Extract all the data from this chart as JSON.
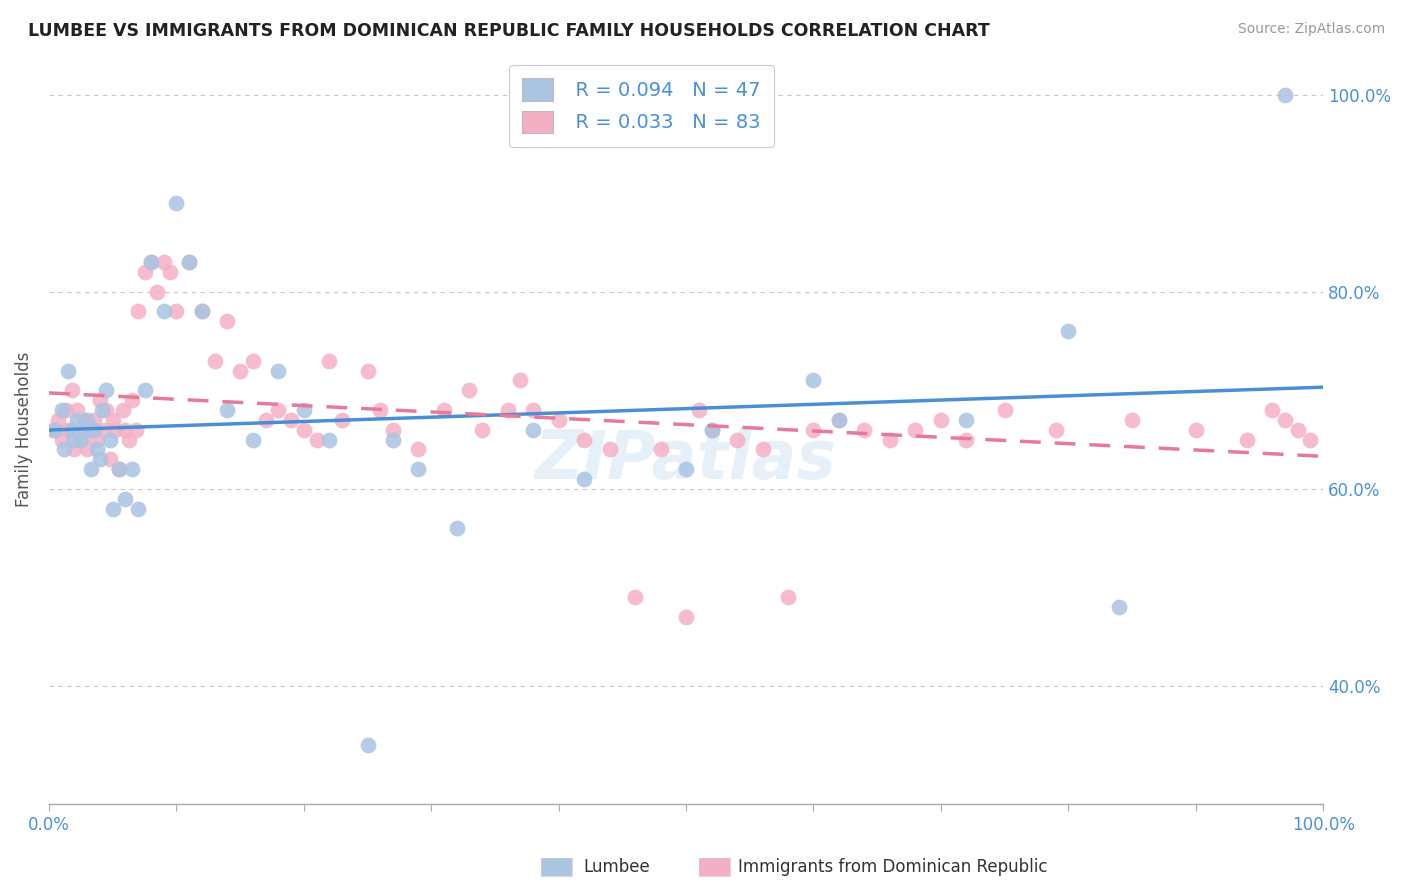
{
  "title": "LUMBEE VS IMMIGRANTS FROM DOMINICAN REPUBLIC FAMILY HOUSEHOLDS CORRELATION CHART",
  "source": "Source: ZipAtlas.com",
  "ylabel": "Family Households",
  "xlim": [
    0.0,
    1.0
  ],
  "ylim": [
    0.28,
    1.04
  ],
  "grid_color": "#c8c8c8",
  "background_color": "#ffffff",
  "lumbee_color": "#aac4e2",
  "dr_color": "#f5afc5",
  "lumbee_line_color": "#4a8fd4",
  "dr_line_color": "#e8799a",
  "legend_R_lumbee": "R = 0.094",
  "legend_N_lumbee": "N = 47",
  "legend_R_dr": "R = 0.033",
  "legend_N_dr": "N = 83",
  "legend_label_lumbee": "Lumbee",
  "legend_label_dr": "Immigrants from Dominican Republic",
  "watermark": "ZIPatlas",
  "lumbee_x": [
    0.005,
    0.01,
    0.012,
    0.015,
    0.018,
    0.02,
    0.022,
    0.025,
    0.028,
    0.03,
    0.033,
    0.035,
    0.038,
    0.04,
    0.042,
    0.045,
    0.048,
    0.05,
    0.055,
    0.06,
    0.065,
    0.07,
    0.075,
    0.08,
    0.09,
    0.1,
    0.11,
    0.12,
    0.14,
    0.16,
    0.18,
    0.2,
    0.22,
    0.25,
    0.27,
    0.29,
    0.32,
    0.38,
    0.42,
    0.5,
    0.52,
    0.6,
    0.62,
    0.72,
    0.8,
    0.84,
    0.97
  ],
  "lumbee_y": [
    0.66,
    0.68,
    0.64,
    0.72,
    0.66,
    0.65,
    0.67,
    0.65,
    0.66,
    0.67,
    0.62,
    0.66,
    0.64,
    0.63,
    0.68,
    0.7,
    0.65,
    0.58,
    0.62,
    0.59,
    0.62,
    0.58,
    0.7,
    0.83,
    0.78,
    0.89,
    0.83,
    0.78,
    0.68,
    0.65,
    0.72,
    0.68,
    0.65,
    0.34,
    0.65,
    0.62,
    0.56,
    0.66,
    0.61,
    0.62,
    0.66,
    0.71,
    0.67,
    0.67,
    0.76,
    0.48,
    1.0
  ],
  "dr_x": [
    0.003,
    0.007,
    0.01,
    0.013,
    0.015,
    0.018,
    0.02,
    0.022,
    0.025,
    0.028,
    0.03,
    0.032,
    0.035,
    0.038,
    0.04,
    0.043,
    0.045,
    0.048,
    0.05,
    0.052,
    0.055,
    0.058,
    0.06,
    0.063,
    0.065,
    0.068,
    0.07,
    0.075,
    0.08,
    0.085,
    0.09,
    0.095,
    0.1,
    0.11,
    0.12,
    0.13,
    0.14,
    0.15,
    0.16,
    0.17,
    0.18,
    0.19,
    0.2,
    0.21,
    0.22,
    0.23,
    0.25,
    0.26,
    0.27,
    0.29,
    0.31,
    0.33,
    0.34,
    0.36,
    0.37,
    0.38,
    0.4,
    0.42,
    0.44,
    0.46,
    0.48,
    0.5,
    0.51,
    0.52,
    0.54,
    0.56,
    0.58,
    0.6,
    0.62,
    0.64,
    0.66,
    0.68,
    0.7,
    0.72,
    0.75,
    0.79,
    0.85,
    0.9,
    0.94,
    0.96,
    0.97,
    0.98,
    0.99
  ],
  "dr_y": [
    0.66,
    0.67,
    0.65,
    0.68,
    0.66,
    0.7,
    0.64,
    0.68,
    0.65,
    0.67,
    0.64,
    0.66,
    0.67,
    0.65,
    0.69,
    0.66,
    0.68,
    0.63,
    0.67,
    0.66,
    0.62,
    0.68,
    0.66,
    0.65,
    0.69,
    0.66,
    0.78,
    0.82,
    0.83,
    0.8,
    0.83,
    0.82,
    0.78,
    0.83,
    0.78,
    0.73,
    0.77,
    0.72,
    0.73,
    0.67,
    0.68,
    0.67,
    0.66,
    0.65,
    0.73,
    0.67,
    0.72,
    0.68,
    0.66,
    0.64,
    0.68,
    0.7,
    0.66,
    0.68,
    0.71,
    0.68,
    0.67,
    0.65,
    0.64,
    0.49,
    0.64,
    0.47,
    0.68,
    0.66,
    0.65,
    0.64,
    0.49,
    0.66,
    0.67,
    0.66,
    0.65,
    0.66,
    0.67,
    0.65,
    0.68,
    0.66,
    0.67,
    0.66,
    0.65,
    0.68,
    0.67,
    0.66,
    0.65
  ]
}
